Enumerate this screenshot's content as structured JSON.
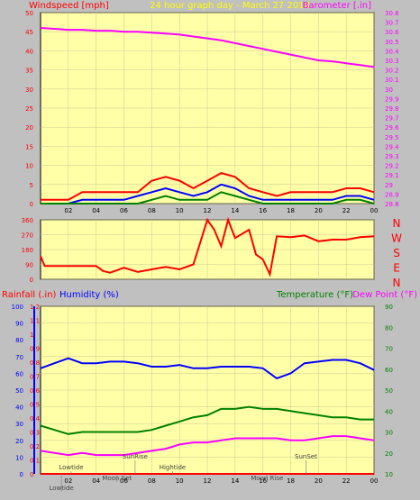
{
  "chart_data": [
    {
      "type": "line",
      "title": "24 hour graph day - March 27 2018",
      "left_axis_label": "Windspeed [mph]",
      "right_axis_label": "Barometer [.in]",
      "x_tick_labels": [
        "02",
        "04",
        "06",
        "08",
        "10",
        "12",
        "14",
        "16",
        "18",
        "20",
        "22",
        "00"
      ],
      "x_range_hours": [
        0,
        24
      ],
      "left_ylim": [
        0,
        50
      ],
      "left_ticks": [
        0,
        5,
        10,
        15,
        20,
        25,
        30,
        35,
        40,
        45,
        50
      ],
      "right_ylim": [
        28.8,
        30.8
      ],
      "right_ticks": [
        "28.8",
        "28.9",
        "29",
        "29.1",
        "29.2",
        "29.3",
        "29.4",
        "29.5",
        "29.6",
        "29.7",
        "29.8",
        "29.9",
        "30",
        "30.1",
        "30.2",
        "30.3",
        "30.4",
        "30.5",
        "30.6",
        "30.7",
        "30.8"
      ],
      "grid": true,
      "series": [
        {
          "key": "barometer",
          "color": "#ff00ff",
          "axis": "right",
          "x": [
            0,
            1,
            2,
            3,
            4,
            5,
            6,
            7,
            8,
            9,
            10,
            11,
            12,
            13,
            14,
            15,
            16,
            17,
            18,
            19,
            20,
            21,
            22,
            23,
            24
          ],
          "values": [
            30.64,
            30.63,
            30.62,
            30.62,
            30.61,
            30.61,
            30.6,
            30.6,
            30.59,
            30.58,
            30.57,
            30.55,
            30.53,
            30.51,
            30.48,
            30.45,
            30.42,
            30.39,
            30.36,
            30.33,
            30.3,
            30.29,
            30.27,
            30.25,
            30.23
          ]
        },
        {
          "key": "wind_gust",
          "color": "#ff0000",
          "axis": "left",
          "x": [
            0,
            1,
            2,
            3,
            4,
            5,
            6,
            7,
            8,
            9,
            10,
            11,
            12,
            13,
            14,
            15,
            16,
            17,
            18,
            19,
            20,
            21,
            22,
            23,
            24
          ],
          "values": [
            1,
            1,
            1,
            3,
            3,
            3,
            3,
            3,
            6,
            7,
            6,
            4,
            6,
            8,
            7,
            4,
            3,
            2,
            3,
            3,
            3,
            3,
            4,
            4,
            3
          ]
        },
        {
          "key": "wind_avg",
          "color": "#0000ff",
          "axis": "left",
          "x": [
            0,
            1,
            2,
            3,
            4,
            5,
            6,
            7,
            8,
            9,
            10,
            11,
            12,
            13,
            14,
            15,
            16,
            17,
            18,
            19,
            20,
            21,
            22,
            23,
            24
          ],
          "values": [
            0,
            0,
            0,
            1,
            1,
            1,
            1,
            2,
            3,
            4,
            3,
            2,
            3,
            5,
            4,
            2,
            1,
            1,
            1,
            1,
            1,
            1,
            2,
            2,
            1
          ]
        },
        {
          "key": "wind_min",
          "color": "#008000",
          "axis": "left",
          "x": [
            0,
            1,
            2,
            3,
            4,
            5,
            6,
            7,
            8,
            9,
            10,
            11,
            12,
            13,
            14,
            15,
            16,
            17,
            18,
            19,
            20,
            21,
            22,
            23,
            24
          ],
          "values": [
            0,
            0,
            0,
            0,
            0,
            0,
            0,
            0,
            1,
            2,
            1,
            1,
            1,
            3,
            2,
            1,
            0,
            0,
            0,
            0,
            0,
            0,
            1,
            1,
            0
          ]
        }
      ]
    },
    {
      "type": "line",
      "left_axis_label": "",
      "right_axis_labels": [
        "N",
        "W",
        "S",
        "E",
        "N"
      ],
      "x_range_hours": [
        0,
        24
      ],
      "left_ylim": [
        0,
        360
      ],
      "left_ticks": [
        0,
        90,
        180,
        270,
        360
      ],
      "grid": true,
      "series": [
        {
          "key": "wind_direction",
          "color": "#ff0000",
          "x": [
            0,
            0.3,
            4,
            4.5,
            5,
            6,
            7,
            8,
            9,
            10,
            11,
            12,
            12.5,
            13,
            13.5,
            14,
            15,
            15.5,
            16,
            16.5,
            17,
            18,
            19,
            20,
            21,
            22,
            23,
            24
          ],
          "values": [
            140,
            80,
            80,
            50,
            40,
            70,
            45,
            60,
            75,
            60,
            90,
            360,
            300,
            200,
            360,
            250,
            300,
            150,
            120,
            30,
            260,
            255,
            265,
            230,
            240,
            240,
            255,
            260
          ]
        }
      ]
    },
    {
      "type": "line",
      "left_axis_labels": [
        "Rainfall (.in)",
        "Humidity (%)"
      ],
      "right_axis_labels": [
        "Temperature (°F)",
        "Dew Point (°F)"
      ],
      "x_tick_labels": [
        "02",
        "04",
        "06",
        "08",
        "10",
        "12",
        "14",
        "16",
        "18",
        "20",
        "22",
        "00"
      ],
      "x_range_hours": [
        0,
        24
      ],
      "humidity_ylim": [
        0,
        100
      ],
      "humidity_ticks": [
        0,
        10,
        20,
        30,
        40,
        50,
        60,
        70,
        80,
        90,
        100
      ],
      "rain_ylim": [
        0,
        1.2
      ],
      "rain_ticks": [
        "0",
        "0.1",
        "0.2",
        "0.3",
        "0.4",
        "0.5",
        "0.6",
        "0.7",
        "0.8",
        "0.9",
        "1",
        "1.1",
        "1.2"
      ],
      "temp_ylim": [
        10,
        90
      ],
      "temp_ticks": [
        10,
        20,
        30,
        40,
        50,
        60,
        70,
        80,
        90
      ],
      "grid": true,
      "series": [
        {
          "key": "humidity",
          "color": "#0000ff",
          "axis": "humidity",
          "x": [
            0,
            1,
            2,
            3,
            4,
            5,
            6,
            7,
            8,
            9,
            10,
            11,
            12,
            13,
            14,
            15,
            16,
            17,
            18,
            19,
            20,
            21,
            22,
            23,
            24
          ],
          "values": [
            63,
            66,
            69,
            66,
            66,
            67,
            67,
            66,
            64,
            64,
            65,
            63,
            63,
            64,
            64,
            64,
            63,
            57,
            60,
            66,
            67,
            68,
            68,
            66,
            62
          ]
        },
        {
          "key": "temperature",
          "color": "#008000",
          "axis": "temp",
          "x": [
            0,
            1,
            2,
            3,
            4,
            5,
            6,
            7,
            8,
            9,
            10,
            11,
            12,
            13,
            14,
            15,
            16,
            17,
            18,
            19,
            20,
            21,
            22,
            23,
            24
          ],
          "values": [
            33,
            31,
            29,
            30,
            30,
            30,
            30,
            30,
            31,
            33,
            35,
            37,
            38,
            41,
            41,
            42,
            41,
            41,
            40,
            39,
            38,
            37,
            37,
            36,
            36
          ]
        },
        {
          "key": "dewpoint",
          "color": "#ff00ff",
          "axis": "temp",
          "x": [
            0,
            1,
            2,
            3,
            4,
            5,
            6,
            7,
            8,
            9,
            10,
            11,
            12,
            13,
            14,
            15,
            16,
            17,
            18,
            19,
            20,
            21,
            22,
            23,
            24
          ],
          "values": [
            21,
            20,
            19,
            20,
            19,
            19,
            19,
            20,
            21,
            22,
            24,
            25,
            25,
            26,
            27,
            27,
            27,
            27,
            26,
            26,
            27,
            28,
            28,
            27,
            26
          ]
        },
        {
          "key": "rainfall",
          "color": "#ff0000",
          "axis": "rain",
          "x": [
            0,
            24
          ],
          "values": [
            0,
            0
          ]
        }
      ],
      "annotations": [
        {
          "text": "Lowtide",
          "hour": 2.2,
          "row": 1
        },
        {
          "text": "Moon Set",
          "hour": 5.5,
          "row": 2
        },
        {
          "text": "SunRise",
          "hour": 6.8,
          "row": 0
        },
        {
          "text": "Hightide",
          "hour": 9.5,
          "row": 1
        },
        {
          "text": "Moon Rise",
          "hour": 16.3,
          "row": 2
        },
        {
          "text": "SunSet",
          "hour": 19.1,
          "row": 0
        },
        {
          "text": "Lowtide",
          "hour": 1.5,
          "row": 3
        }
      ]
    }
  ]
}
